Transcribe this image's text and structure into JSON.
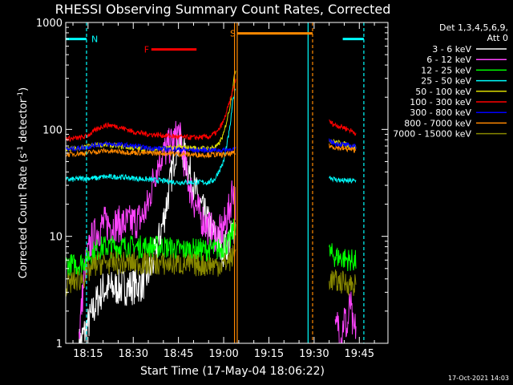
{
  "chart_data": {
    "type": "line",
    "title": "RHESSI Observing Summary Count Rates, Corrected",
    "xlabel": "Start Time (17-May-04 18:06:22)",
    "ylabel": "Corrected Count Rate (s⁻¹ detector⁻¹)",
    "ylabel_main": "Corrected Count Rate (s",
    "ylabel_mid": " detector",
    "ylabel_end": ")",
    "ylabel_sup": "-1",
    "x_range_min": [
      7.6,
      114.5
    ],
    "y_scale": "log",
    "ylim": [
      1,
      1000
    ],
    "x_ticks": [
      {
        "v": 15,
        "label": "18:15"
      },
      {
        "v": 30,
        "label": "18:30"
      },
      {
        "v": 45,
        "label": "18:45"
      },
      {
        "v": 60,
        "label": "19:00"
      },
      {
        "v": 75,
        "label": "19:15"
      },
      {
        "v": 90,
        "label": "19:30"
      },
      {
        "v": 105,
        "label": "19:45"
      }
    ],
    "y_ticks": [
      {
        "v": 1,
        "label": "1"
      },
      {
        "v": 10,
        "label": "10"
      },
      {
        "v": 100,
        "label": "100"
      },
      {
        "v": 1000,
        "label": "1000"
      }
    ],
    "legend_header": [
      "Det 1,3,4,5,6,9,",
      "Att 0"
    ],
    "legend_position": "right",
    "series": [
      {
        "name": "3 - 6 keV",
        "color": "#ffffff",
        "segments": [
          {
            "x": [
              12,
              15,
              18,
              20,
              25,
              30,
              33,
              36,
              38,
              40,
              42,
              44,
              45,
              46,
              48,
              50,
              52,
              55,
              58,
              60,
              62,
              63,
              64
            ],
            "y": [
              0.95,
              1.5,
              2.5,
              3.2,
              3.3,
              3.4,
              3.6,
              5,
              8,
              14,
              28,
              65,
              78,
              70,
              45,
              30,
              20,
              13,
              9,
              7.5,
              9,
              11,
              13
            ]
          }
        ]
      },
      {
        "name": "6 - 12 keV",
        "color": "#ff44ff",
        "segments": [
          {
            "x": [
              12,
              14,
              16,
              18,
              20,
              25,
              30,
              33,
              35,
              37,
              39,
              42,
              44,
              45,
              46,
              47,
              48,
              50,
              52,
              55,
              58,
              60,
              62,
              63,
              64
            ],
            "y": [
              1.2,
              5,
              9,
              11,
              13,
              13,
              13.5,
              15,
              20,
              38,
              55,
              70,
              82,
              95,
              70,
              50,
              35,
              22,
              16,
              12,
              10,
              12,
              18,
              30,
              20
            ]
          },
          {
            "x": [
              97,
              98,
              99,
              100,
              101,
              102,
              103,
              104
            ],
            "y": [
              1.2,
              1.6,
              1.1,
              1.8,
              1.3,
              2.5,
              1.2,
              1.5
            ]
          }
        ]
      },
      {
        "name": "12 - 25 keV",
        "color": "#00ff00",
        "segments": [
          {
            "x": [
              7.6,
              10,
              12,
              14,
              15,
              18,
              20,
              25,
              30,
              35,
              40,
              45,
              50,
              55,
              58,
              60,
              62,
              63,
              64
            ],
            "y": [
              5.5,
              5.4,
              5.5,
              6,
              6.5,
              7.5,
              8,
              8,
              8,
              8,
              8,
              7.5,
              7.5,
              7.5,
              7.5,
              8,
              9,
              11,
              13
            ]
          },
          {
            "x": [
              95,
              97,
              100,
              102,
              104
            ],
            "y": [
              7,
              6.5,
              6.2,
              6,
              5.8
            ]
          }
        ]
      },
      {
        "name": "25 - 50 keV",
        "color": "#00ffff",
        "segments": [
          {
            "x": [
              7.6,
              10,
              14,
              18,
              20,
              25,
              30,
              35,
              40,
              45,
              50,
              55,
              57,
              60,
              62,
              63,
              64
            ],
            "y": [
              34,
              34,
              35,
              35,
              36,
              36,
              35,
              34,
              33,
              32,
              32,
              32,
              34,
              50,
              100,
              180,
              250
            ]
          },
          {
            "x": [
              95,
              97,
              100,
              102,
              104
            ],
            "y": [
              36,
              34,
              33,
              33,
              33
            ]
          }
        ]
      },
      {
        "name": "50 - 100 keV",
        "color": "#dddd00",
        "segments": [
          {
            "x": [
              7.6,
              10,
              14,
              18,
              20,
              25,
              30,
              35,
              40,
              45,
              50,
              55,
              58,
              60,
              62,
              63,
              64
            ],
            "y": [
              65,
              66,
              68,
              72,
              72,
              70,
              67,
              65,
              66,
              68,
              67,
              66,
              70,
              90,
              160,
              250,
              370
            ]
          },
          {
            "x": [
              95,
              97,
              100,
              102,
              104
            ],
            "y": [
              80,
              76,
              73,
              70,
              68
            ]
          }
        ]
      },
      {
        "name": "100 - 300 keV",
        "color": "#ff0000",
        "segments": [
          {
            "x": [
              7.6,
              10,
              14,
              18,
              20,
              22,
              25,
              28,
              30,
              35,
              40,
              45,
              50,
              55,
              58,
              60,
              62,
              63,
              64
            ],
            "y": [
              82,
              82,
              85,
              100,
              108,
              110,
              106,
              100,
              95,
              90,
              88,
              85,
              84,
              85,
              95,
              120,
              180,
              230,
              300
            ]
          },
          {
            "x": [
              95,
              97,
              100,
              102,
              104
            ],
            "y": [
              118,
              110,
              104,
              98,
              92
            ]
          }
        ]
      },
      {
        "name": "300 - 800 keV",
        "color": "#0000ff",
        "segments": [
          {
            "x": [
              7.6,
              10,
              14,
              18,
              20,
              25,
              30,
              35,
              40,
              45,
              50,
              55,
              58,
              60,
              62,
              64
            ],
            "y": [
              65,
              66,
              68,
              72,
              73,
              72,
              70,
              67,
              66,
              65,
              64,
              64,
              64,
              64,
              65,
              65
            ]
          },
          {
            "x": [
              95,
              97,
              100,
              102,
              104
            ],
            "y": [
              78,
              74,
              72,
              70,
              69
            ]
          }
        ]
      },
      {
        "name": "800 - 7000 keV",
        "color": "#ff8800",
        "segments": [
          {
            "x": [
              7.6,
              10,
              14,
              18,
              20,
              25,
              30,
              35,
              40,
              45,
              50,
              55,
              58,
              60,
              62,
              64
            ],
            "y": [
              58,
              59,
              60,
              62,
              63,
              62,
              61,
              60,
              60,
              59,
              58,
              58,
              58,
              58,
              59,
              60
            ]
          },
          {
            "x": [
              95,
              97,
              100,
              102,
              104
            ],
            "y": [
              70,
              68,
              66,
              65,
              64
            ]
          }
        ]
      },
      {
        "name": "7000 - 15000 keV",
        "color": "#888800",
        "segments": [
          {
            "x": [
              7.6,
              10,
              12,
              14,
              15,
              16,
              18,
              20,
              25,
              30,
              35,
              40,
              45,
              50,
              55,
              58,
              60,
              62,
              63,
              64
            ],
            "y": [
              3.5,
              3.8,
              3.9,
              4.2,
              4.5,
              5,
              5.5,
              5.6,
              5.6,
              5.6,
              5.5,
              5.5,
              5.5,
              5.4,
              5.4,
              5.4,
              5.5,
              6,
              6.5,
              7
            ]
          },
          {
            "x": [
              95,
              97,
              100,
              102,
              104
            ],
            "y": [
              4,
              3.8,
              3.7,
              3.6,
              3.5
            ]
          }
        ]
      }
    ],
    "flag_bars": [
      {
        "label": "N",
        "color": "#00ffff",
        "x": [
          7.6,
          14.5
        ],
        "y": 700
      },
      {
        "label": "N",
        "color": "#00ffff",
        "x": [
          99.5,
          106.5
        ],
        "y": 700
      },
      {
        "label": "F",
        "color": "#ff0000",
        "x": [
          36,
          51
        ],
        "y": 560
      },
      {
        "label": "S",
        "color": "#ff8800",
        "x": [
          64.5,
          89.5
        ],
        "y": 790
      }
    ],
    "vertical_lines": [
      {
        "x": 14.5,
        "color": "#00ffff",
        "style": "dashed"
      },
      {
        "x": 63.6,
        "color": "#ff8800",
        "style": "solid"
      },
      {
        "x": 64.5,
        "color": "#ff8800",
        "style": "solid"
      },
      {
        "x": 88.0,
        "color": "#00ffff",
        "style": "solid"
      },
      {
        "x": 89.5,
        "color": "#ff8800",
        "style": "dashed"
      },
      {
        "x": 106.5,
        "color": "#00ffff",
        "style": "dashed"
      }
    ],
    "timestamp": "17-Oct-2021 14:03"
  }
}
